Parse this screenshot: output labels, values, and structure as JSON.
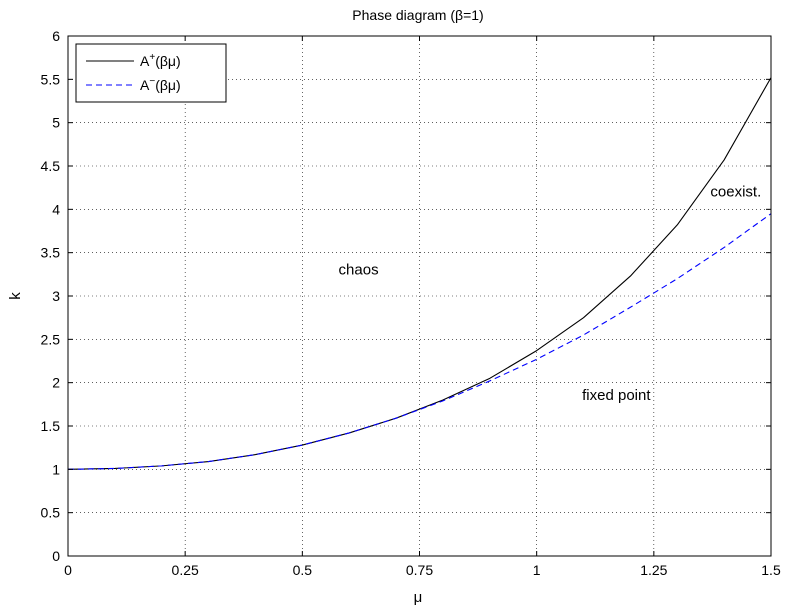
{
  "chart_data": {
    "type": "line",
    "title": "Phase diagram (β=1)",
    "xlabel": "μ",
    "ylabel": "k",
    "xlim": [
      0,
      1.5
    ],
    "ylim": [
      0,
      6
    ],
    "xticks": [
      0,
      0.25,
      0.5,
      0.75,
      1,
      1.25,
      1.5
    ],
    "xtick_labels": [
      "0",
      "0.25",
      "0.5",
      "0.75",
      "1",
      "1.25",
      "1.5"
    ],
    "yticks": [
      0,
      0.5,
      1,
      1.5,
      2,
      2.5,
      3,
      3.5,
      4,
      4.5,
      5,
      5.5,
      6
    ],
    "ytick_labels": [
      "0",
      "0.5",
      "1",
      "1.5",
      "2",
      "2.5",
      "3",
      "3.5",
      "4",
      "4.5",
      "5",
      "5.5",
      "6"
    ],
    "grid": true,
    "legend_position": "top-left",
    "series": [
      {
        "name_base": "A",
        "name_sup": "+",
        "name_rest": "(βμ)",
        "color": "#000000",
        "style": "solid",
        "x": [
          0,
          0.1,
          0.2,
          0.3,
          0.4,
          0.5,
          0.6,
          0.7,
          0.8,
          0.9,
          1.0,
          1.1,
          1.2,
          1.3,
          1.4,
          1.5
        ],
        "y": [
          1.0,
          1.01,
          1.04,
          1.09,
          1.17,
          1.28,
          1.42,
          1.59,
          1.8,
          2.05,
          2.37,
          2.75,
          3.23,
          3.82,
          4.57,
          5.52
        ]
      },
      {
        "name_base": "A",
        "name_sup": "−",
        "name_rest": "(βμ)",
        "color": "#0000ff",
        "style": "dashed",
        "x": [
          0,
          0.1,
          0.2,
          0.3,
          0.4,
          0.5,
          0.6,
          0.7,
          0.8,
          0.9,
          1.0,
          1.1,
          1.2,
          1.3,
          1.4,
          1.5
        ],
        "y": [
          1.0,
          1.01,
          1.04,
          1.09,
          1.17,
          1.28,
          1.42,
          1.59,
          1.79,
          2.02,
          2.27,
          2.55,
          2.87,
          3.2,
          3.56,
          3.95
        ]
      }
    ],
    "annotations": [
      {
        "text": "chaos",
        "x": 0.62,
        "y": 3.25
      },
      {
        "text": "coexist.",
        "x": 1.425,
        "y": 4.15
      },
      {
        "text": "fixed point",
        "x": 1.17,
        "y": 1.8
      }
    ]
  }
}
